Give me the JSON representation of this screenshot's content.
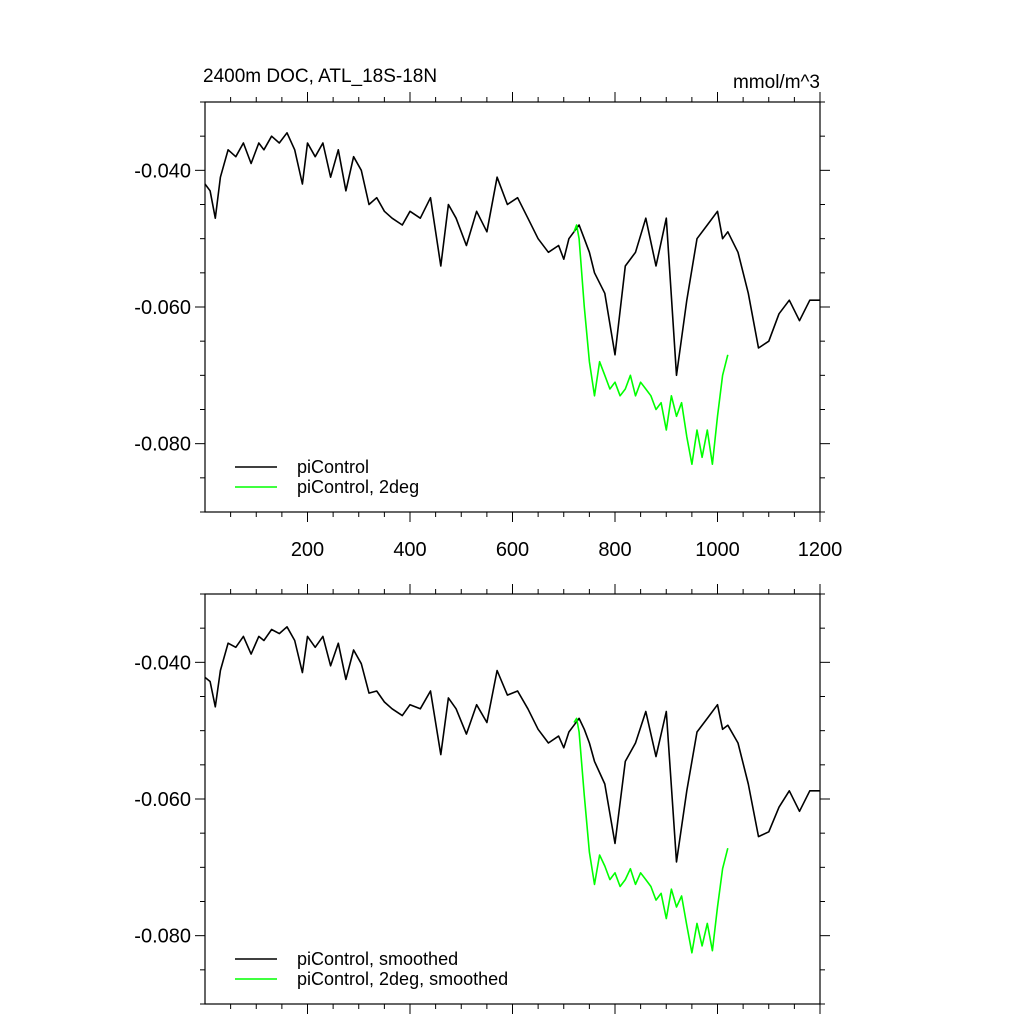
{
  "chart_data": [
    {
      "type": "line",
      "title": "2400m DOC, ATL_18S-18N",
      "units": "mmol/m^3",
      "xlabel": "",
      "ylabel": "",
      "xlim": [
        0,
        1200
      ],
      "ylim": [
        -0.09,
        -0.03
      ],
      "xticks": [
        200,
        400,
        600,
        800,
        1000,
        1200
      ],
      "xtick_labels": [
        "200",
        "400",
        "600",
        "800",
        "1000",
        "1200"
      ],
      "yticks": [
        -0.04,
        -0.06,
        -0.08
      ],
      "ytick_labels": [
        "-0.040",
        "-0.060",
        "-0.080"
      ],
      "grid": false,
      "legend_position": "bottom-left",
      "series": [
        {
          "name": "piControl",
          "color": "#000000",
          "x": [
            0,
            10,
            20,
            30,
            45,
            60,
            75,
            90,
            105,
            115,
            130,
            145,
            160,
            175,
            190,
            200,
            215,
            230,
            245,
            260,
            275,
            290,
            305,
            320,
            335,
            350,
            365,
            385,
            400,
            420,
            440,
            460,
            475,
            490,
            510,
            530,
            550,
            570,
            590,
            610,
            630,
            650,
            670,
            690,
            700,
            710,
            720,
            730,
            740,
            750,
            760,
            780,
            800,
            820,
            840,
            860,
            880,
            900,
            920,
            940,
            960,
            980,
            1000,
            1010,
            1020,
            1040,
            1060,
            1080,
            1100,
            1120,
            1140,
            1160,
            1180,
            1200
          ],
          "values": [
            -0.042,
            -0.043,
            -0.047,
            -0.041,
            -0.037,
            -0.038,
            -0.036,
            -0.039,
            -0.036,
            -0.037,
            -0.035,
            -0.036,
            -0.0345,
            -0.037,
            -0.042,
            -0.036,
            -0.038,
            -0.036,
            -0.041,
            -0.037,
            -0.043,
            -0.038,
            -0.04,
            -0.045,
            -0.044,
            -0.046,
            -0.047,
            -0.048,
            -0.046,
            -0.047,
            -0.044,
            -0.054,
            -0.045,
            -0.047,
            -0.051,
            -0.046,
            -0.049,
            -0.041,
            -0.045,
            -0.044,
            -0.047,
            -0.05,
            -0.052,
            -0.051,
            -0.053,
            -0.05,
            -0.049,
            -0.048,
            -0.05,
            -0.052,
            -0.055,
            -0.058,
            -0.067,
            -0.054,
            -0.052,
            -0.047,
            -0.054,
            -0.047,
            -0.07,
            -0.059,
            -0.05,
            -0.048,
            -0.046,
            -0.05,
            -0.049,
            -0.052,
            -0.058,
            -0.066,
            -0.065,
            -0.061,
            -0.059,
            -0.062,
            -0.059,
            -0.059
          ]
        },
        {
          "name": "piControl, 2deg",
          "color": "#00ff00",
          "x": [
            720,
            725,
            730,
            740,
            750,
            760,
            770,
            780,
            790,
            800,
            810,
            820,
            830,
            840,
            850,
            860,
            870,
            880,
            890,
            900,
            910,
            920,
            930,
            940,
            950,
            960,
            970,
            980,
            990,
            1000,
            1010,
            1020
          ],
          "values": [
            -0.049,
            -0.048,
            -0.05,
            -0.06,
            -0.068,
            -0.073,
            -0.068,
            -0.07,
            -0.072,
            -0.071,
            -0.073,
            -0.072,
            -0.07,
            -0.073,
            -0.071,
            -0.072,
            -0.073,
            -0.075,
            -0.074,
            -0.078,
            -0.073,
            -0.076,
            -0.074,
            -0.079,
            -0.083,
            -0.078,
            -0.082,
            -0.078,
            -0.083,
            -0.076,
            -0.07,
            -0.067
          ]
        }
      ]
    },
    {
      "type": "line",
      "title": "",
      "xlabel": "",
      "ylabel": "",
      "xlim": [
        0,
        1200
      ],
      "ylim": [
        -0.09,
        -0.03
      ],
      "yticks": [
        -0.04,
        -0.06,
        -0.08
      ],
      "ytick_labels": [
        "-0.040",
        "-0.060",
        "-0.080"
      ],
      "grid": false,
      "legend_position": "bottom-left",
      "series": [
        {
          "name": "piControl, smoothed",
          "color": "#000000",
          "x": [
            0,
            10,
            20,
            30,
            45,
            60,
            75,
            90,
            105,
            115,
            130,
            145,
            160,
            175,
            190,
            200,
            215,
            230,
            245,
            260,
            275,
            290,
            305,
            320,
            335,
            350,
            365,
            385,
            400,
            420,
            440,
            460,
            475,
            490,
            510,
            530,
            550,
            570,
            590,
            610,
            630,
            650,
            670,
            690,
            700,
            710,
            720,
            730,
            740,
            750,
            760,
            780,
            800,
            820,
            840,
            860,
            880,
            900,
            920,
            940,
            960,
            980,
            1000,
            1010,
            1020,
            1040,
            1060,
            1080,
            1100,
            1120,
            1140,
            1160,
            1180,
            1200
          ],
          "values": [
            -0.0422,
            -0.0428,
            -0.0465,
            -0.0412,
            -0.0372,
            -0.0378,
            -0.0362,
            -0.0388,
            -0.0362,
            -0.0368,
            -0.0352,
            -0.0358,
            -0.0348,
            -0.0368,
            -0.0415,
            -0.0362,
            -0.0378,
            -0.0362,
            -0.0405,
            -0.0372,
            -0.0425,
            -0.0382,
            -0.0402,
            -0.0445,
            -0.0442,
            -0.0458,
            -0.0468,
            -0.0478,
            -0.0462,
            -0.0468,
            -0.0442,
            -0.0535,
            -0.0452,
            -0.0468,
            -0.0505,
            -0.0462,
            -0.0488,
            -0.0412,
            -0.0448,
            -0.0442,
            -0.0468,
            -0.0498,
            -0.0518,
            -0.0508,
            -0.0525,
            -0.0502,
            -0.0492,
            -0.0482,
            -0.0498,
            -0.0518,
            -0.0545,
            -0.0578,
            -0.0665,
            -0.0545,
            -0.0518,
            -0.0472,
            -0.0538,
            -0.0472,
            -0.0692,
            -0.0588,
            -0.0502,
            -0.0482,
            -0.0462,
            -0.0498,
            -0.0492,
            -0.0518,
            -0.0578,
            -0.0655,
            -0.0648,
            -0.0612,
            -0.0588,
            -0.0618,
            -0.0588,
            -0.0588
          ]
        },
        {
          "name": "piControl, 2deg, smoothed",
          "color": "#00ff00",
          "x": [
            720,
            725,
            730,
            740,
            750,
            760,
            770,
            780,
            790,
            800,
            810,
            820,
            830,
            840,
            850,
            860,
            870,
            880,
            890,
            900,
            910,
            920,
            930,
            940,
            950,
            960,
            970,
            980,
            990,
            1000,
            1010,
            1020
          ],
          "values": [
            -0.0488,
            -0.0482,
            -0.0502,
            -0.0595,
            -0.0678,
            -0.0725,
            -0.0682,
            -0.0698,
            -0.0718,
            -0.0708,
            -0.0728,
            -0.0718,
            -0.0702,
            -0.0725,
            -0.0708,
            -0.0718,
            -0.0728,
            -0.0748,
            -0.0738,
            -0.0775,
            -0.0732,
            -0.0758,
            -0.0742,
            -0.0785,
            -0.0825,
            -0.0782,
            -0.0815,
            -0.0782,
            -0.0822,
            -0.0758,
            -0.0702,
            -0.0672
          ]
        }
      ]
    }
  ]
}
